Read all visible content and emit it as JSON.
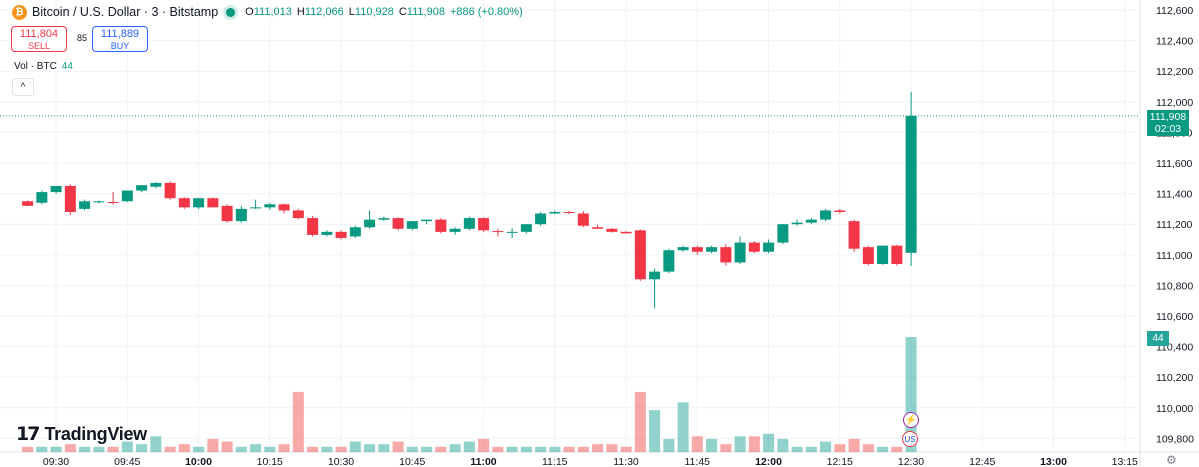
{
  "header": {
    "coin_glyph": "₿",
    "symbol": "Bitcoin / U.S. Dollar · 3 · Bitstamp",
    "open_label": "O",
    "open_value": "111,013",
    "high_label": "H",
    "high_value": "112,066",
    "low_label": "L",
    "low_value": "110,928",
    "close_label": "C",
    "close_value": "111,908",
    "change": "+886 (+0.80%)"
  },
  "trade": {
    "sell_price": "111,804",
    "sell_label": "SELL",
    "spread": "85",
    "buy_price": "111,889",
    "buy_label": "BUY"
  },
  "volume_legend": {
    "label": "Vol · BTC",
    "value": "44"
  },
  "collapse_glyph": "^",
  "branding": {
    "logo_mark": "17",
    "logo_text": "TradingView"
  },
  "price_tag": {
    "price": "111,908",
    "countdown": "02:03"
  },
  "volume_tag": "44",
  "event_icons": {
    "bolt_glyph": "⚡",
    "flag_glyph": "US"
  },
  "settings_glyph": "⚙",
  "colors": {
    "up": "#089981",
    "down": "#f23645",
    "vol_up": "#26a69a",
    "vol_down": "#ef5350",
    "grid": "#f0f3fa"
  },
  "chart_data": {
    "type": "candlestick",
    "title": "Bitcoin / U.S. Dollar · 3 · Bitstamp",
    "ylim": [
      109750,
      112680
    ],
    "y_ticks": [
      "112,600",
      "112,400",
      "112,200",
      "112,000",
      "111,800",
      "111,600",
      "111,400",
      "111,200",
      "111,000",
      "110,800",
      "110,600",
      "110,400",
      "110,200",
      "110,000",
      "109,800"
    ],
    "y_tick_values": [
      112600,
      112400,
      112200,
      112000,
      111800,
      111600,
      111400,
      111200,
      111000,
      110800,
      110600,
      110400,
      110200,
      110000,
      109800
    ],
    "x_ticks": [
      "09:30",
      "09:45",
      "10:00",
      "10:15",
      "10:30",
      "10:45",
      "11:00",
      "11:15",
      "11:30",
      "11:45",
      "12:00",
      "12:15",
      "12:30",
      "12:45",
      "13:00",
      "13:15"
    ],
    "x_tick_bold": [
      false,
      false,
      true,
      false,
      false,
      false,
      true,
      false,
      false,
      false,
      true,
      false,
      false,
      false,
      true,
      false
    ],
    "start_time": "09:24",
    "interval_minutes": 3,
    "last_price": 111908,
    "volume_max": 44,
    "candles": [
      {
        "t": "09:24",
        "o": 111350,
        "h": 111355,
        "l": 111320,
        "c": 111320,
        "v": 2
      },
      {
        "t": "09:27",
        "o": 111340,
        "h": 111420,
        "l": 111330,
        "c": 111410,
        "v": 2
      },
      {
        "t": "09:30",
        "o": 111410,
        "h": 111450,
        "l": 111400,
        "c": 111450,
        "v": 2
      },
      {
        "t": "09:33",
        "o": 111450,
        "h": 111460,
        "l": 111260,
        "c": 111280,
        "v": 3
      },
      {
        "t": "09:36",
        "o": 111300,
        "h": 111360,
        "l": 111290,
        "c": 111350,
        "v": 2
      },
      {
        "t": "09:39",
        "o": 111345,
        "h": 111355,
        "l": 111335,
        "c": 111350,
        "v": 2
      },
      {
        "t": "09:42",
        "o": 111345,
        "h": 111410,
        "l": 111330,
        "c": 111340,
        "v": 2
      },
      {
        "t": "09:45",
        "o": 111350,
        "h": 111420,
        "l": 111345,
        "c": 111420,
        "v": 4
      },
      {
        "t": "09:48",
        "o": 111420,
        "h": 111455,
        "l": 111410,
        "c": 111455,
        "v": 3
      },
      {
        "t": "09:51",
        "o": 111445,
        "h": 111475,
        "l": 111435,
        "c": 111470,
        "v": 6
      },
      {
        "t": "09:54",
        "o": 111470,
        "h": 111480,
        "l": 111360,
        "c": 111370,
        "v": 2
      },
      {
        "t": "09:57",
        "o": 111370,
        "h": 111375,
        "l": 111300,
        "c": 111310,
        "v": 3
      },
      {
        "t": "10:00",
        "o": 111310,
        "h": 111370,
        "l": 111300,
        "c": 111370,
        "v": 2
      },
      {
        "t": "10:03",
        "o": 111370,
        "h": 111375,
        "l": 111310,
        "c": 111310,
        "v": 5
      },
      {
        "t": "10:06",
        "o": 111320,
        "h": 111330,
        "l": 111210,
        "c": 111220,
        "v": 4
      },
      {
        "t": "10:09",
        "o": 111220,
        "h": 111320,
        "l": 111210,
        "c": 111300,
        "v": 2
      },
      {
        "t": "10:12",
        "o": 111310,
        "h": 111360,
        "l": 111300,
        "c": 111310,
        "v": 3
      },
      {
        "t": "10:15",
        "o": 111310,
        "h": 111340,
        "l": 111295,
        "c": 111330,
        "v": 2
      },
      {
        "t": "10:18",
        "o": 111330,
        "h": 111335,
        "l": 111270,
        "c": 111290,
        "v": 3
      },
      {
        "t": "10:21",
        "o": 111290,
        "h": 111300,
        "l": 111230,
        "c": 111240,
        "v": 23
      },
      {
        "t": "10:24",
        "o": 111240,
        "h": 111255,
        "l": 111120,
        "c": 111130,
        "v": 2
      },
      {
        "t": "10:27",
        "o": 111130,
        "h": 111160,
        "l": 111120,
        "c": 111150,
        "v": 2
      },
      {
        "t": "10:30",
        "o": 111150,
        "h": 111160,
        "l": 111100,
        "c": 111110,
        "v": 2
      },
      {
        "t": "10:33",
        "o": 111120,
        "h": 111190,
        "l": 111110,
        "c": 111180,
        "v": 4
      },
      {
        "t": "10:36",
        "o": 111180,
        "h": 111290,
        "l": 111170,
        "c": 111230,
        "v": 3
      },
      {
        "t": "10:39",
        "o": 111230,
        "h": 111250,
        "l": 111220,
        "c": 111240,
        "v": 3
      },
      {
        "t": "10:42",
        "o": 111240,
        "h": 111245,
        "l": 111160,
        "c": 111170,
        "v": 4
      },
      {
        "t": "10:45",
        "o": 111170,
        "h": 111220,
        "l": 111160,
        "c": 111220,
        "v": 2
      },
      {
        "t": "10:48",
        "o": 111220,
        "h": 111230,
        "l": 111200,
        "c": 111230,
        "v": 2
      },
      {
        "t": "10:51",
        "o": 111230,
        "h": 111240,
        "l": 111140,
        "c": 111150,
        "v": 2
      },
      {
        "t": "10:54",
        "o": 111150,
        "h": 111180,
        "l": 111130,
        "c": 111170,
        "v": 3
      },
      {
        "t": "10:57",
        "o": 111170,
        "h": 111250,
        "l": 111160,
        "c": 111240,
        "v": 4
      },
      {
        "t": "11:00",
        "o": 111240,
        "h": 111245,
        "l": 111150,
        "c": 111160,
        "v": 5
      },
      {
        "t": "11:03",
        "o": 111155,
        "h": 111170,
        "l": 111120,
        "c": 111150,
        "v": 2
      },
      {
        "t": "11:06",
        "o": 111145,
        "h": 111175,
        "l": 111110,
        "c": 111150,
        "v": 2
      },
      {
        "t": "11:09",
        "o": 111150,
        "h": 111200,
        "l": 111140,
        "c": 111200,
        "v": 2
      },
      {
        "t": "11:12",
        "o": 111200,
        "h": 111280,
        "l": 111190,
        "c": 111270,
        "v": 2
      },
      {
        "t": "11:15",
        "o": 111270,
        "h": 111290,
        "l": 111265,
        "c": 111280,
        "v": 2
      },
      {
        "t": "11:18",
        "o": 111280,
        "h": 111285,
        "l": 111265,
        "c": 111275,
        "v": 2
      },
      {
        "t": "11:21",
        "o": 111270,
        "h": 111285,
        "l": 111180,
        "c": 111190,
        "v": 2
      },
      {
        "t": "11:24",
        "o": 111180,
        "h": 111195,
        "l": 111170,
        "c": 111170,
        "v": 3
      },
      {
        "t": "11:27",
        "o": 111170,
        "h": 111175,
        "l": 111145,
        "c": 111150,
        "v": 3
      },
      {
        "t": "11:30",
        "o": 111150,
        "h": 111155,
        "l": 111140,
        "c": 111140,
        "v": 2
      },
      {
        "t": "11:33",
        "o": 111160,
        "h": 111165,
        "l": 110830,
        "c": 110840,
        "v": 23
      },
      {
        "t": "11:36",
        "o": 110840,
        "h": 110910,
        "l": 110650,
        "c": 110890,
        "v": 16
      },
      {
        "t": "11:39",
        "o": 110890,
        "h": 111040,
        "l": 110880,
        "c": 111030,
        "v": 5
      },
      {
        "t": "11:42",
        "o": 111030,
        "h": 111060,
        "l": 111020,
        "c": 111050,
        "v": 19
      },
      {
        "t": "11:45",
        "o": 111050,
        "h": 111060,
        "l": 111000,
        "c": 111020,
        "v": 6
      },
      {
        "t": "11:48",
        "o": 111020,
        "h": 111060,
        "l": 111010,
        "c": 111050,
        "v": 5
      },
      {
        "t": "11:51",
        "o": 111050,
        "h": 111070,
        "l": 110930,
        "c": 110950,
        "v": 3
      },
      {
        "t": "11:54",
        "o": 110950,
        "h": 111120,
        "l": 110940,
        "c": 111080,
        "v": 6
      },
      {
        "t": "11:57",
        "o": 111080,
        "h": 111090,
        "l": 111010,
        "c": 111020,
        "v": 6
      },
      {
        "t": "12:00",
        "o": 111020,
        "h": 111100,
        "l": 111010,
        "c": 111080,
        "v": 7
      },
      {
        "t": "12:03",
        "o": 111080,
        "h": 111200,
        "l": 111070,
        "c": 111200,
        "v": 5
      },
      {
        "t": "12:06",
        "o": 111200,
        "h": 111230,
        "l": 111190,
        "c": 111210,
        "v": 2
      },
      {
        "t": "12:09",
        "o": 111210,
        "h": 111240,
        "l": 111200,
        "c": 111230,
        "v": 2
      },
      {
        "t": "12:12",
        "o": 111230,
        "h": 111300,
        "l": 111220,
        "c": 111290,
        "v": 4
      },
      {
        "t": "12:15",
        "o": 111290,
        "h": 111300,
        "l": 111270,
        "c": 111280,
        "v": 3
      },
      {
        "t": "12:18",
        "o": 111220,
        "h": 111230,
        "l": 111020,
        "c": 111040,
        "v": 5
      },
      {
        "t": "12:21",
        "o": 111050,
        "h": 111060,
        "l": 110930,
        "c": 110940,
        "v": 3
      },
      {
        "t": "12:24",
        "o": 110940,
        "h": 111060,
        "l": 110935,
        "c": 111060,
        "v": 2
      },
      {
        "t": "12:27",
        "o": 111060,
        "h": 111065,
        "l": 110930,
        "c": 110940,
        "v": 2
      },
      {
        "t": "12:30",
        "o": 111013,
        "h": 112066,
        "l": 110928,
        "c": 111908,
        "v": 44
      }
    ]
  }
}
